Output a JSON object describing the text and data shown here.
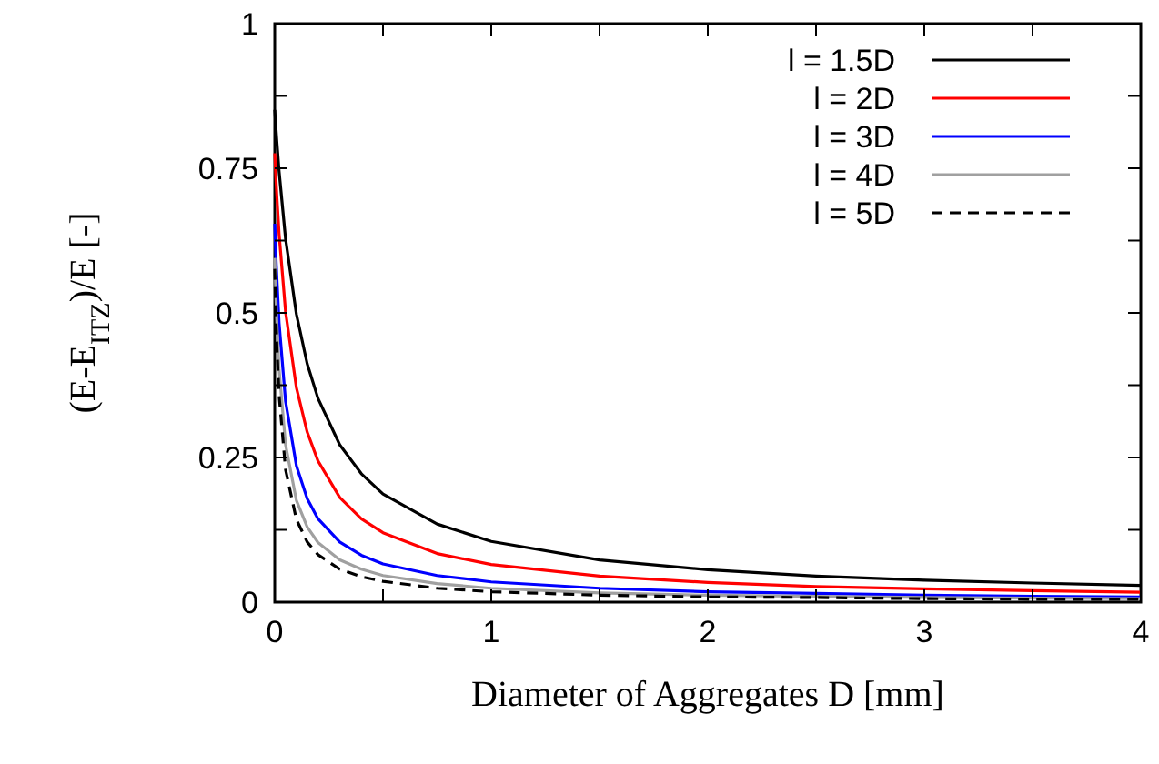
{
  "chart_data": {
    "type": "line",
    "xlabel": "Diameter of Aggregates D [mm]",
    "ylabel": "(E-E$_{ITZ}$)/E [-]",
    "x": [
      0,
      0.005,
      0.01,
      0.02,
      0.05,
      0.1,
      0.15,
      0.2,
      0.3,
      0.4,
      0.5,
      0.75,
      1,
      1.5,
      2,
      2.5,
      3,
      3.5,
      4
    ],
    "series": [
      {
        "name": "l = 1.5D",
        "color": "#000000",
        "line_style": "solid",
        "values": [
          0.851,
          0.822,
          0.795,
          0.745,
          0.628,
          0.498,
          0.412,
          0.352,
          0.272,
          0.222,
          0.187,
          0.135,
          0.105,
          0.073,
          0.056,
          0.045,
          0.038,
          0.033,
          0.029
        ]
      },
      {
        "name": "l = 2D",
        "color": "#ff0000",
        "line_style": "solid",
        "values": [
          0.776,
          0.736,
          0.7,
          0.637,
          0.502,
          0.371,
          0.294,
          0.244,
          0.181,
          0.144,
          0.12,
          0.084,
          0.065,
          0.045,
          0.034,
          0.027,
          0.023,
          0.02,
          0.017
        ]
      },
      {
        "name": "l = 3D",
        "color": "#0000ff",
        "line_style": "solid",
        "values": [
          0.654,
          0.6,
          0.56,
          0.483,
          0.347,
          0.236,
          0.179,
          0.144,
          0.104,
          0.081,
          0.066,
          0.046,
          0.035,
          0.024,
          0.018,
          0.015,
          0.012,
          0.01,
          0.009
        ]
      },
      {
        "name": "l = 4D",
        "color": "#a0a0a0",
        "line_style": "solid",
        "values": [
          0.595,
          0.532,
          0.481,
          0.403,
          0.272,
          0.176,
          0.13,
          0.103,
          0.073,
          0.057,
          0.046,
          0.032,
          0.024,
          0.016,
          0.012,
          0.01,
          0.008,
          0.007,
          0.006
        ]
      },
      {
        "name": "l = 5D",
        "color": "#000000",
        "line_style": "dashed",
        "values": [
          0.576,
          0.5,
          0.442,
          0.358,
          0.229,
          0.143,
          0.104,
          0.082,
          0.057,
          0.044,
          0.036,
          0.024,
          0.018,
          0.012,
          0.009,
          0.008,
          0.006,
          0.005,
          0.005
        ]
      }
    ],
    "xlim": [
      0,
      4
    ],
    "xticks": [
      0,
      {
        "value": 0.5,
        "label": null
      },
      1,
      {
        "value": 1.5,
        "label": null
      },
      2,
      {
        "value": 2.5,
        "label": null
      },
      3,
      {
        "value": 3.5,
        "label": null
      },
      4
    ],
    "ylim": [
      0,
      1
    ],
    "yticks": [
      0,
      {
        "value": 0.125,
        "label": null
      },
      0.25,
      {
        "value": 0.375,
        "label": null
      },
      0.5,
      {
        "value": 0.625,
        "label": null
      },
      0.75,
      {
        "value": 0.875,
        "label": null
      },
      1
    ],
    "legend": "top right",
    "grid": false
  }
}
